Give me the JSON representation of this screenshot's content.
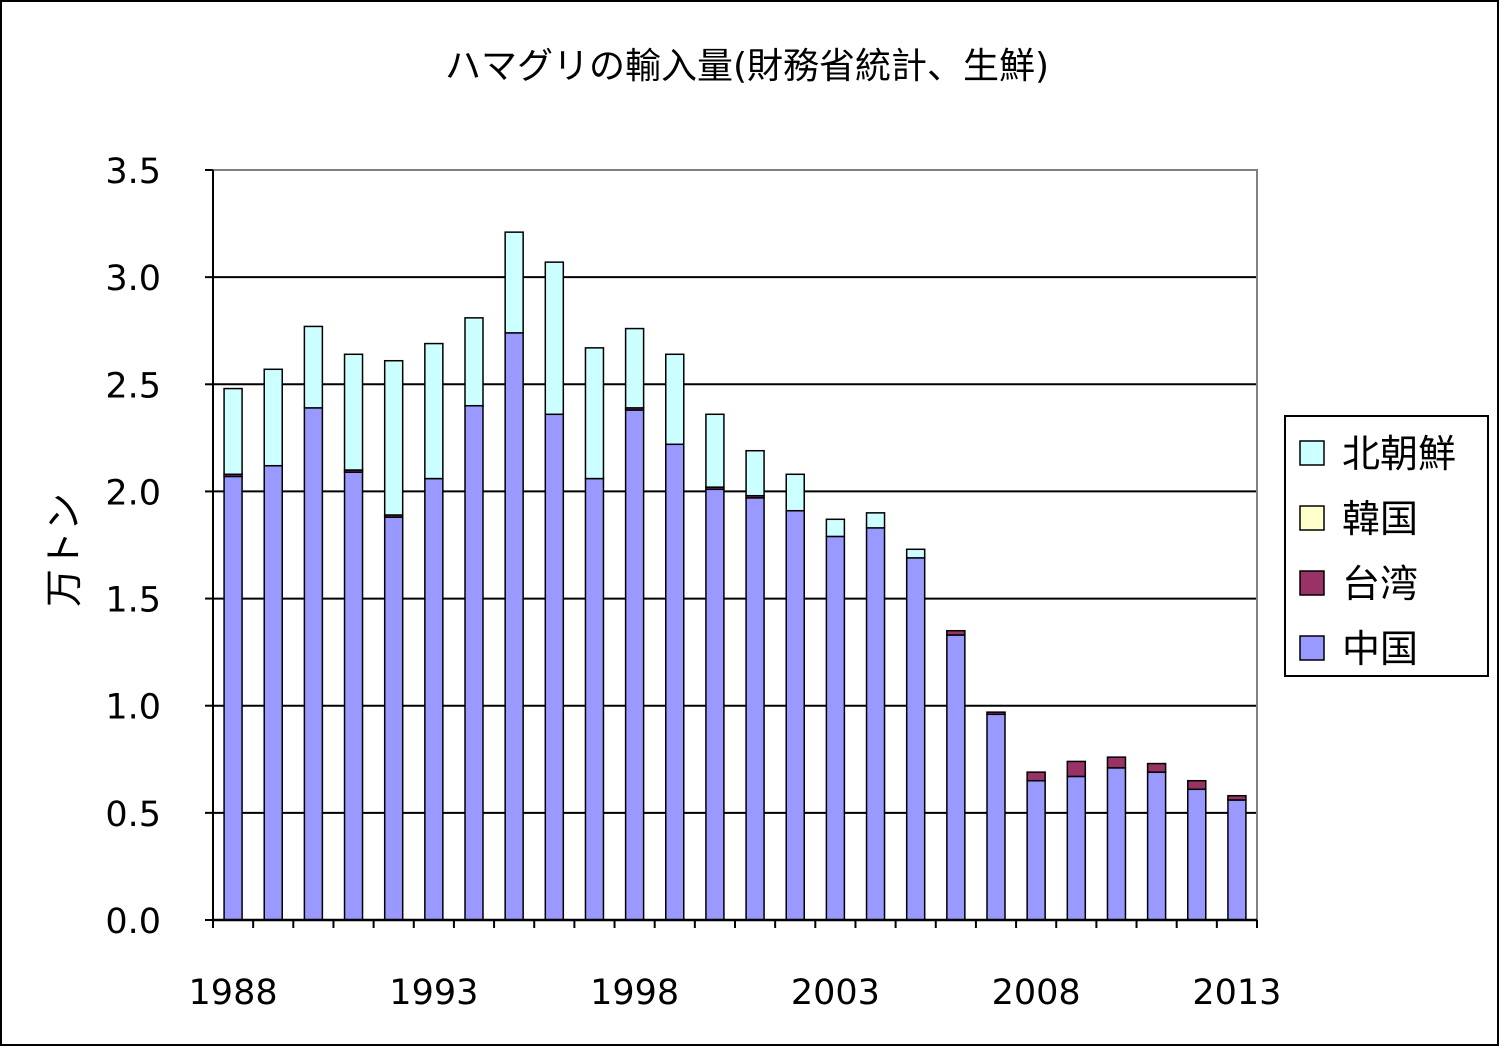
{
  "chart_data": {
    "type": "bar",
    "stacked": true,
    "title": "ハマグリの輸入量(財務省統計、生鮮)",
    "ylabel": "万トン",
    "xlabel": "",
    "ylim": [
      0,
      3.5
    ],
    "yticks": [
      "0.0",
      "0.5",
      "1.0",
      "1.5",
      "2.0",
      "2.5",
      "3.0",
      "3.5"
    ],
    "xtick_labels": [
      "1988",
      "1993",
      "1998",
      "2003",
      "2008",
      "2013"
    ],
    "grid": "horizontal",
    "legend_position": "right",
    "categories": [
      1988,
      1989,
      1990,
      1991,
      1992,
      1993,
      1994,
      1995,
      1996,
      1997,
      1998,
      1999,
      2000,
      2001,
      2002,
      2003,
      2004,
      2005,
      2006,
      2007,
      2008,
      2009,
      2010,
      2011,
      2012,
      2013
    ],
    "series": [
      {
        "name": "中国",
        "color": "#9999ff",
        "values": [
          2.07,
          2.12,
          2.39,
          2.09,
          1.88,
          2.06,
          2.4,
          2.74,
          2.36,
          2.06,
          2.38,
          2.22,
          2.01,
          1.97,
          1.91,
          1.79,
          1.83,
          1.69,
          1.33,
          0.96,
          0.65,
          0.67,
          0.71,
          0.69,
          0.61,
          0.56
        ]
      },
      {
        "name": "台湾",
        "color": "#993366",
        "values": [
          0.01,
          0.0,
          0.0,
          0.01,
          0.01,
          0.0,
          0.0,
          0.0,
          0.0,
          0.0,
          0.01,
          0.0,
          0.01,
          0.01,
          0.0,
          0.0,
          0.0,
          0.0,
          0.02,
          0.01,
          0.04,
          0.07,
          0.05,
          0.04,
          0.04,
          0.02
        ]
      },
      {
        "name": "韓国",
        "color": "#ffffcc",
        "values": [
          0,
          0,
          0,
          0,
          0,
          0,
          0,
          0,
          0,
          0,
          0,
          0,
          0,
          0,
          0,
          0,
          0,
          0,
          0,
          0,
          0,
          0,
          0,
          0,
          0,
          0
        ]
      },
      {
        "name": "北朝鮮",
        "color": "#ccffff",
        "values": [
          0.4,
          0.45,
          0.38,
          0.54,
          0.72,
          0.63,
          0.41,
          0.47,
          0.71,
          0.61,
          0.37,
          0.42,
          0.34,
          0.21,
          0.17,
          0.08,
          0.07,
          0.04,
          0,
          0,
          0,
          0,
          0,
          0,
          0,
          0
        ]
      }
    ],
    "legend_order": [
      "北朝鮮",
      "韓国",
      "台湾",
      "中国"
    ]
  }
}
